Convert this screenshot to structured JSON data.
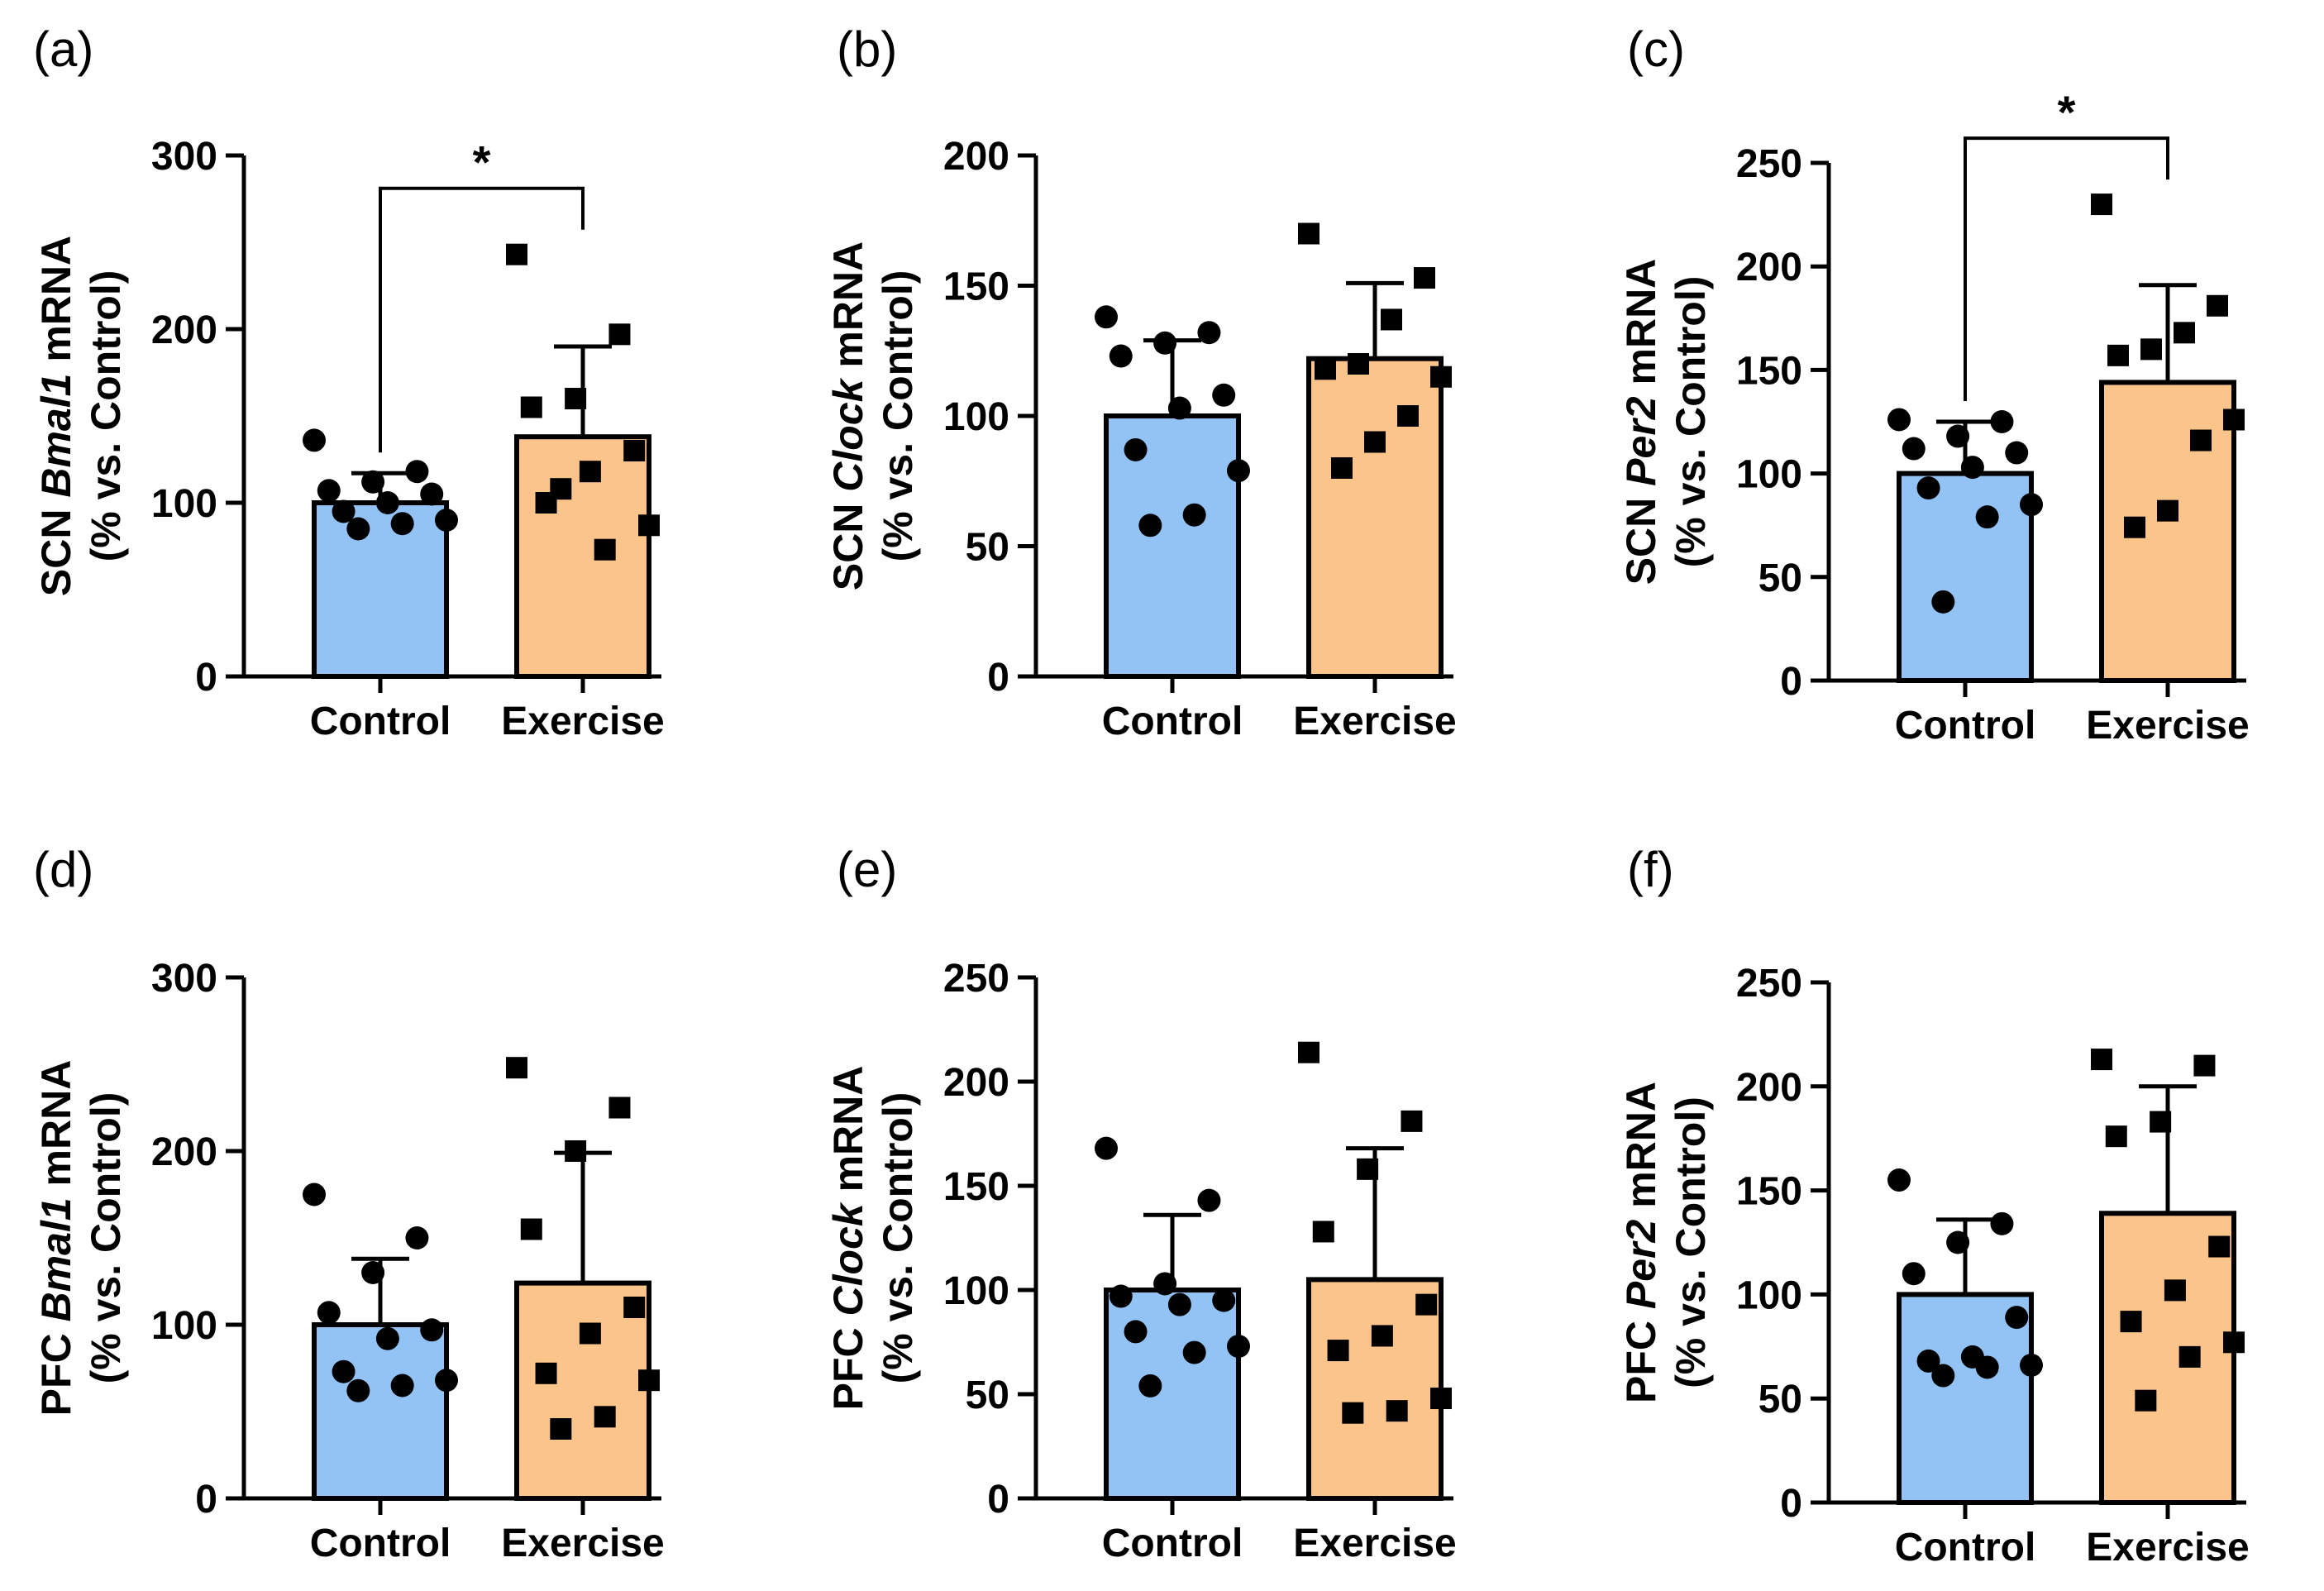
{
  "figure": {
    "groups": [
      "Control",
      "Exercise"
    ],
    "colors": {
      "control": "#93C3F5",
      "exercise": "#FBC48A",
      "stroke": "#000000"
    }
  },
  "chart_data": [
    {
      "type": "bar",
      "panel_label": "(a)",
      "region": "SCN",
      "gene": "Bmal1",
      "ylabel_suffix": "mRNA",
      "ylabel_line2": "(% vs. Control)",
      "categories": [
        "Control",
        "Exercise"
      ],
      "values": [
        100,
        138
      ],
      "error": [
        17,
        52
      ],
      "yticks": [
        0,
        100,
        200,
        300
      ],
      "ylim": [
        0,
        300
      ],
      "significance": "*",
      "points": {
        "Control": [
          136,
          118,
          112,
          107,
          105,
          100,
          95,
          90,
          88,
          85
        ],
        "Exercise": [
          243,
          197,
          160,
          155,
          130,
          118,
          100,
          87,
          73,
          108
        ]
      }
    },
    {
      "type": "bar",
      "panel_label": "(b)",
      "region": "SCN",
      "gene": "Clock",
      "ylabel_suffix": "mRNA",
      "ylabel_line2": "(% vs. Control)",
      "categories": [
        "Control",
        "Exercise"
      ],
      "values": [
        100,
        122
      ],
      "error": [
        29,
        29
      ],
      "yticks": [
        0,
        50,
        100,
        150,
        200
      ],
      "ylim": [
        0,
        200
      ],
      "significance": null,
      "points": {
        "Control": [
          138,
          132,
          128,
          123,
          108,
          103,
          87,
          79,
          62,
          58
        ],
        "Exercise": [
          170,
          153,
          137,
          120,
          118,
          115,
          100,
          90,
          80
        ]
      }
    },
    {
      "type": "bar",
      "panel_label": "(c)",
      "region": "SCN",
      "gene": "Per2",
      "ylabel_suffix": "mRNA",
      "ylabel_line2": "(% vs. Control)",
      "categories": [
        "Control",
        "Exercise"
      ],
      "values": [
        100,
        144
      ],
      "error": [
        25,
        47
      ],
      "yticks": [
        0,
        50,
        100,
        150,
        200,
        250
      ],
      "ylim": [
        0,
        250
      ],
      "significance": "*",
      "points": {
        "Control": [
          126,
          125,
          118,
          112,
          110,
          103,
          93,
          85,
          79,
          38
        ],
        "Exercise": [
          230,
          181,
          168,
          160,
          157,
          126,
          116,
          82,
          74
        ]
      }
    },
    {
      "type": "bar",
      "panel_label": "(d)",
      "region": "PFC",
      "gene": "Bmal1",
      "ylabel_suffix": "mRNA",
      "ylabel_line2": "(% vs. Control)",
      "categories": [
        "Control",
        "Exercise"
      ],
      "values": [
        100,
        124
      ],
      "error": [
        38,
        75
      ],
      "yticks": [
        0,
        100,
        200,
        300
      ],
      "ylim": [
        0,
        300
      ],
      "significance": null,
      "points": {
        "Control": [
          175,
          150,
          130,
          107,
          97,
          92,
          73,
          68,
          65,
          62
        ],
        "Exercise": [
          248,
          225,
          200,
          155,
          110,
          95,
          72,
          68,
          47,
          40
        ]
      }
    },
    {
      "type": "bar",
      "panel_label": "(e)",
      "region": "PFC",
      "gene": "Clock",
      "ylabel_suffix": "mRNA",
      "ylabel_line2": "(% vs. Control)",
      "categories": [
        "Control",
        "Exercise"
      ],
      "values": [
        100,
        105
      ],
      "error": [
        36,
        63
      ],
      "yticks": [
        0,
        50,
        100,
        150,
        200,
        250
      ],
      "ylim": [
        0,
        250
      ],
      "significance": null,
      "points": {
        "Control": [
          168,
          143,
          103,
          97,
          95,
          93,
          80,
          73,
          70,
          54
        ],
        "Exercise": [
          214,
          181,
          158,
          128,
          93,
          78,
          71,
          48,
          42,
          41
        ]
      }
    },
    {
      "type": "bar",
      "panel_label": "(f)",
      "region": "PFC",
      "gene": "Per2",
      "ylabel_suffix": "mRNA",
      "ylabel_line2": "(% vs. Control)",
      "categories": [
        "Control",
        "Exercise"
      ],
      "values": [
        100,
        139
      ],
      "error": [
        36,
        61
      ],
      "yticks": [
        0,
        50,
        100,
        150,
        200,
        250
      ],
      "ylim": [
        0,
        250
      ],
      "significance": null,
      "points": {
        "Control": [
          155,
          134,
          125,
          110,
          89,
          70,
          68,
          66,
          65,
          61
        ],
        "Exercise": [
          213,
          210,
          183,
          176,
          123,
          102,
          87,
          77,
          70,
          49
        ]
      }
    }
  ]
}
